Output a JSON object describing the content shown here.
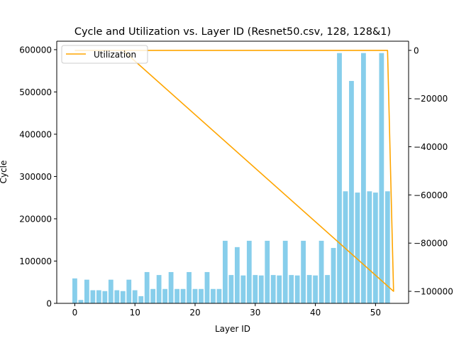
{
  "chart_data": {
    "type": "bar+line",
    "title": "Cycle and Utilization vs. Layer ID (Resnet50.csv, 128, 128&1)",
    "xlabel": "Layer ID",
    "ylabel": "Cycle",
    "xlim": [
      -3,
      55.5
    ],
    "ylim": [
      0,
      620000
    ],
    "y2lim": [
      -105000,
      3800
    ],
    "xticks": [
      0,
      10,
      20,
      30,
      40,
      50
    ],
    "yticks": [
      0,
      100000,
      200000,
      300000,
      400000,
      500000,
      600000
    ],
    "y2ticks": [
      0,
      -20000,
      -40000,
      -60000,
      -80000,
      -100000
    ],
    "legend": {
      "label": "Utilization",
      "placement": "top-left"
    },
    "colors": {
      "bars": "#87ceeb",
      "line": "#ffa500",
      "axis": "#000000"
    },
    "bars": {
      "name": "",
      "x": [
        0,
        1,
        2,
        3,
        4,
        5,
        6,
        7,
        8,
        9,
        10,
        11,
        12,
        13,
        14,
        15,
        16,
        17,
        18,
        19,
        20,
        21,
        22,
        23,
        24,
        25,
        26,
        27,
        28,
        29,
        30,
        31,
        32,
        33,
        34,
        35,
        36,
        37,
        38,
        39,
        40,
        41,
        42,
        43,
        44,
        45,
        46,
        47,
        48,
        49,
        50,
        51,
        52
      ],
      "values": [
        59000,
        8000,
        56000,
        31000,
        31000,
        29000,
        56000,
        31000,
        29000,
        56000,
        31000,
        17000,
        74000,
        34000,
        67000,
        34000,
        74000,
        34000,
        34000,
        74000,
        34000,
        34000,
        74000,
        34000,
        34000,
        148000,
        67000,
        133000,
        66000,
        148000,
        67000,
        66000,
        148000,
        67000,
        66000,
        148000,
        67000,
        66000,
        148000,
        67000,
        66000,
        148000,
        67000,
        131000,
        592000,
        265000,
        526000,
        262000,
        592000,
        265000,
        262000,
        592000,
        265000
      ]
    },
    "line": {
      "name": "Utilization",
      "points": [
        [
          0,
          0
        ],
        [
          1,
          0
        ],
        [
          2,
          0
        ],
        [
          3,
          0
        ],
        [
          4,
          0
        ],
        [
          5,
          0
        ],
        [
          6,
          0
        ],
        [
          7,
          0
        ],
        [
          8,
          0
        ],
        [
          9,
          0
        ],
        [
          10,
          0
        ],
        [
          11,
          0
        ],
        [
          12,
          0
        ],
        [
          13,
          0
        ],
        [
          14,
          0
        ],
        [
          15,
          0
        ],
        [
          16,
          0
        ],
        [
          17,
          0
        ],
        [
          18,
          0
        ],
        [
          19,
          0
        ],
        [
          20,
          0
        ],
        [
          21,
          0
        ],
        [
          22,
          0
        ],
        [
          23,
          0
        ],
        [
          24,
          0
        ],
        [
          25,
          0
        ],
        [
          26,
          0
        ],
        [
          27,
          0
        ],
        [
          28,
          0
        ],
        [
          29,
          0
        ],
        [
          30,
          0
        ],
        [
          31,
          0
        ],
        [
          32,
          0
        ],
        [
          33,
          0
        ],
        [
          34,
          0
        ],
        [
          35,
          0
        ],
        [
          36,
          0
        ],
        [
          37,
          0
        ],
        [
          38,
          0
        ],
        [
          39,
          0
        ],
        [
          40,
          0
        ],
        [
          41,
          0
        ],
        [
          42,
          0
        ],
        [
          43,
          0
        ],
        [
          44,
          0
        ],
        [
          45,
          0
        ],
        [
          46,
          0
        ],
        [
          47,
          0
        ],
        [
          48,
          0
        ],
        [
          49,
          0
        ],
        [
          50,
          0
        ],
        [
          51,
          0
        ],
        [
          52,
          0
        ],
        [
          53,
          -100000
        ],
        [
          8,
          0
        ]
      ]
    }
  }
}
